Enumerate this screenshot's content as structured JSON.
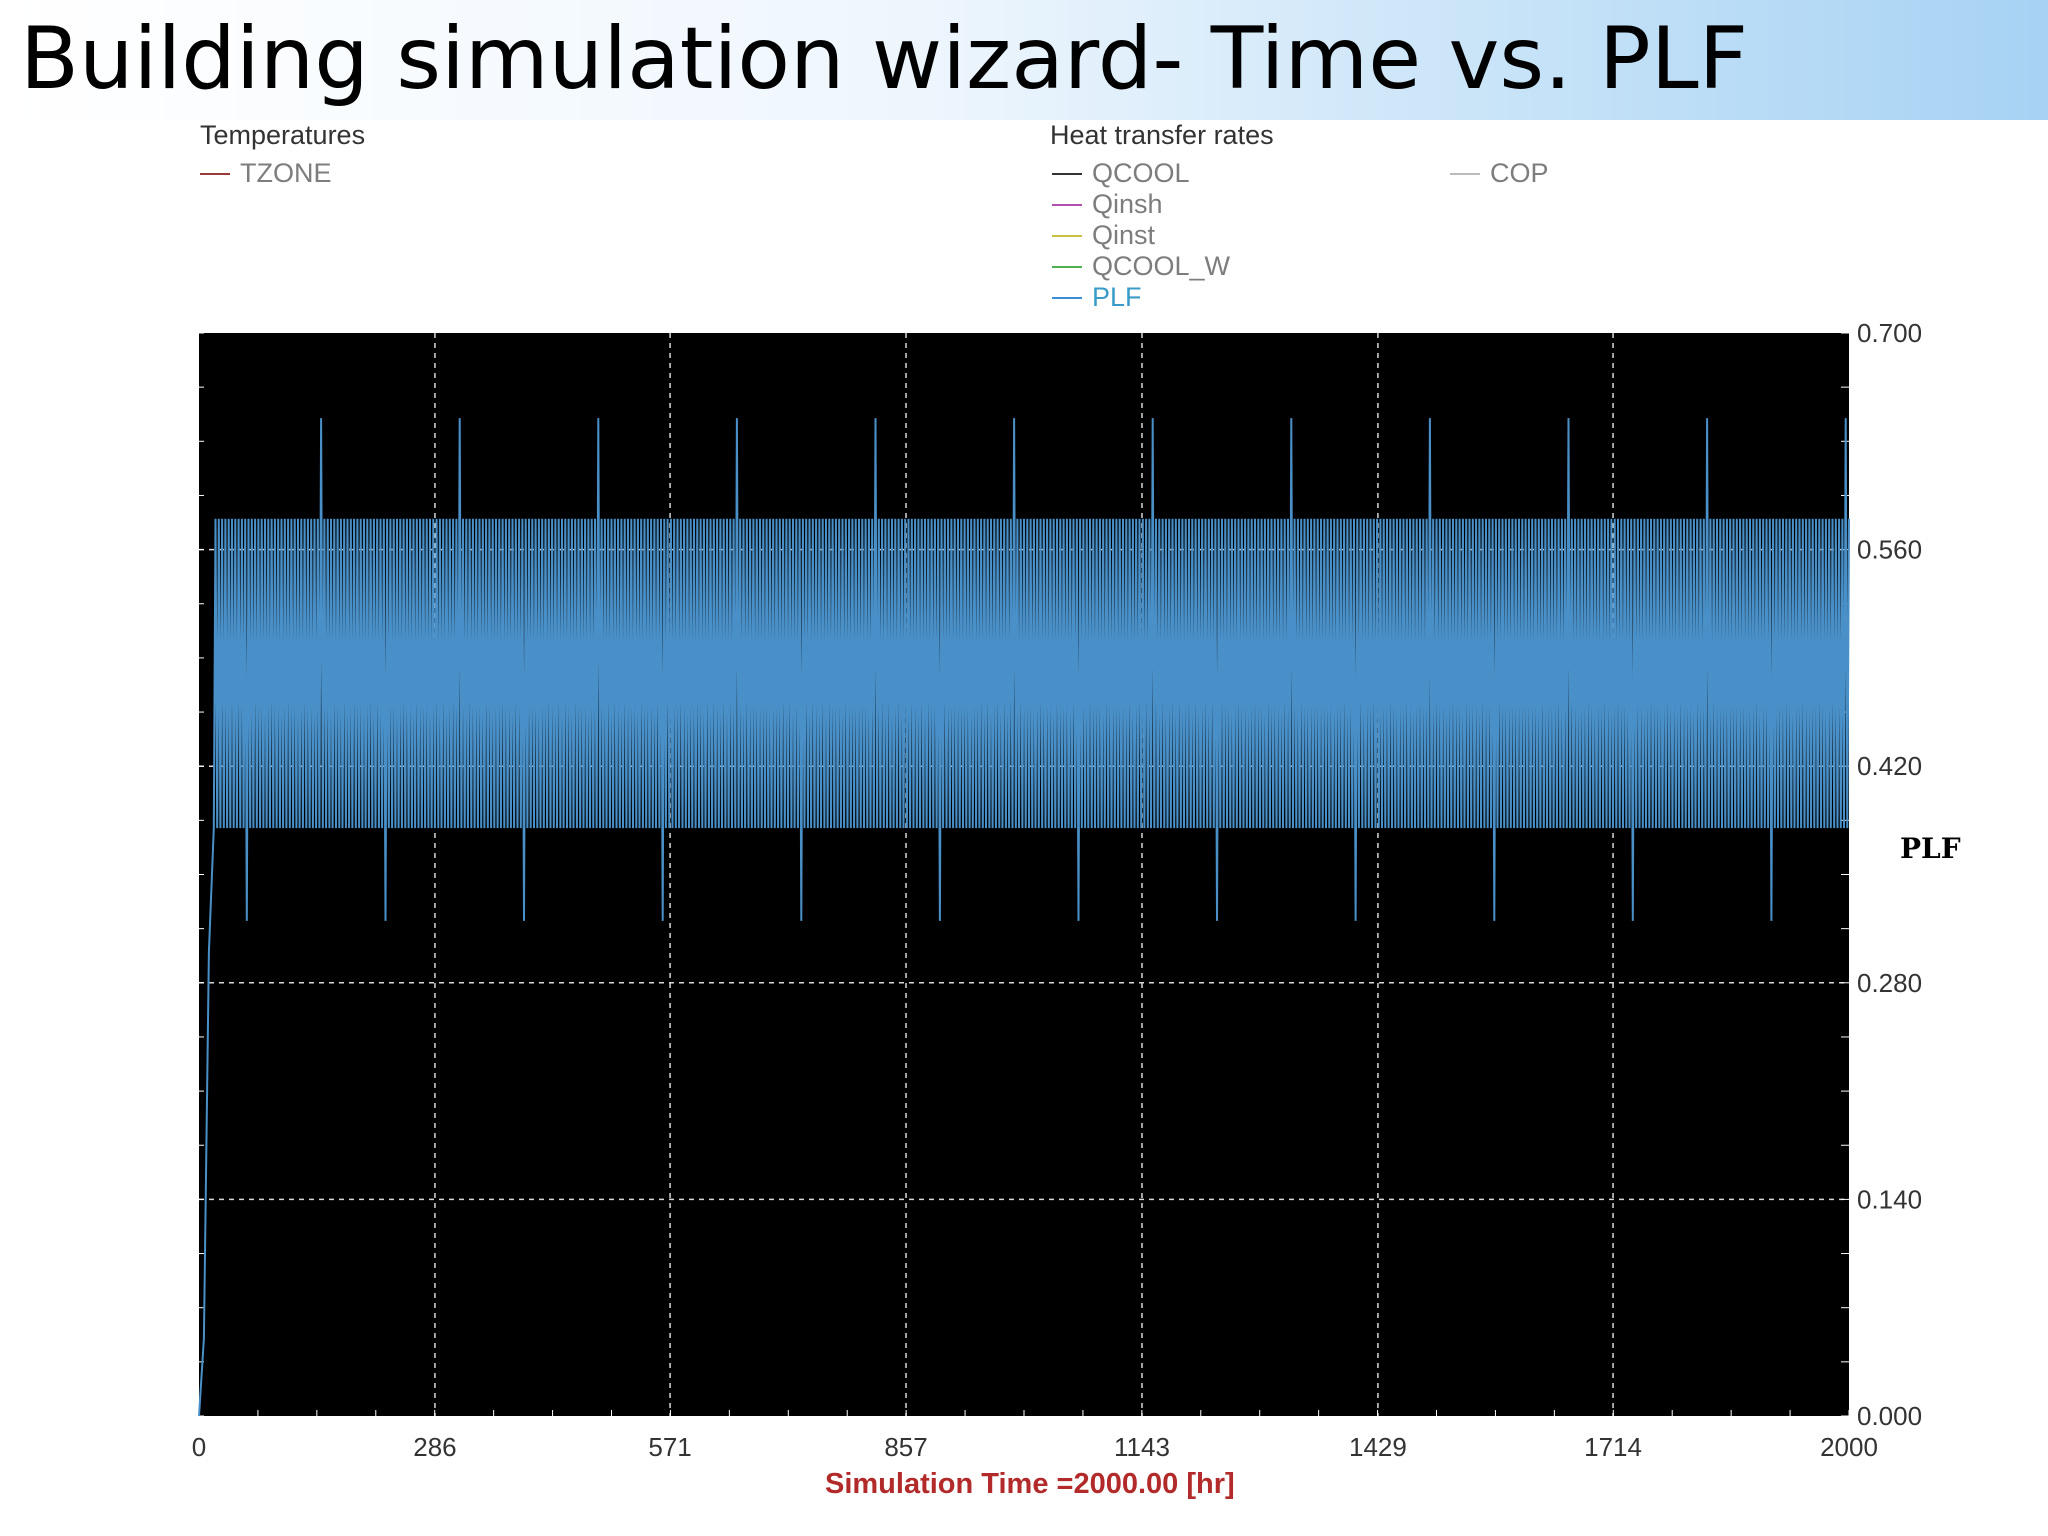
{
  "title": "Building simulation wizard- Time vs. PLF",
  "legend": {
    "temperatures": {
      "title": "Temperatures",
      "items": [
        {
          "label": "TZONE",
          "color": "#9b3a3a"
        }
      ]
    },
    "heat_transfer_rates": {
      "title": "Heat  transfer rates",
      "items": [
        {
          "label": "QCOOL",
          "color": "#333333"
        },
        {
          "label": "Qinsh",
          "color": "#b04fb0"
        },
        {
          "label": "Qinst",
          "color": "#c8c040"
        },
        {
          "label": "QCOOL_W",
          "color": "#4fb04f"
        },
        {
          "label": "PLF",
          "color": "#3a8fd6"
        }
      ]
    },
    "other": {
      "items": [
        {
          "label": "COP",
          "color": "#bbbbbb"
        }
      ]
    }
  },
  "chart_data": {
    "type": "line",
    "title": "Building simulation wizard- Time vs. PLF",
    "xlabel": "Simulation Time =2000.00 [hr]",
    "ylabel": "PLF",
    "xlim": [
      0,
      2000
    ],
    "ylim": [
      0,
      0.7
    ],
    "x_ticks": [
      "0",
      "286",
      "571",
      "857",
      "1143",
      "1429",
      "1714",
      "2000"
    ],
    "y_ticks": [
      "0.000",
      "0.140",
      "0.280",
      "0.420",
      "0.560",
      "0.700"
    ],
    "grid": true,
    "background": "#000000",
    "series": [
      {
        "name": "PLF",
        "color": "#4a90c8",
        "pattern": {
          "startup": [
            [
              0,
              0.0
            ],
            [
              6,
              0.05
            ],
            [
              12,
              0.3
            ],
            [
              18,
              0.38
            ]
          ],
          "period_hours": 24,
          "daily_cycle": [
            [
              0,
              0.38
            ],
            [
              2,
              0.58
            ],
            [
              4,
              0.38
            ],
            [
              6,
              0.58
            ],
            [
              8,
              0.38
            ],
            [
              10,
              0.58
            ],
            [
              12,
              0.38
            ],
            [
              14,
              0.58
            ],
            [
              16,
              0.38
            ],
            [
              18,
              0.58
            ],
            [
              20,
              0.38
            ],
            [
              22,
              0.58
            ],
            [
              24,
              0.38
            ]
          ],
          "week_days": 7,
          "weekly_peak": {
            "day": 5,
            "value": 0.645
          },
          "weekly_dip": {
            "day": 1,
            "value": 0.32
          }
        }
      }
    ]
  }
}
